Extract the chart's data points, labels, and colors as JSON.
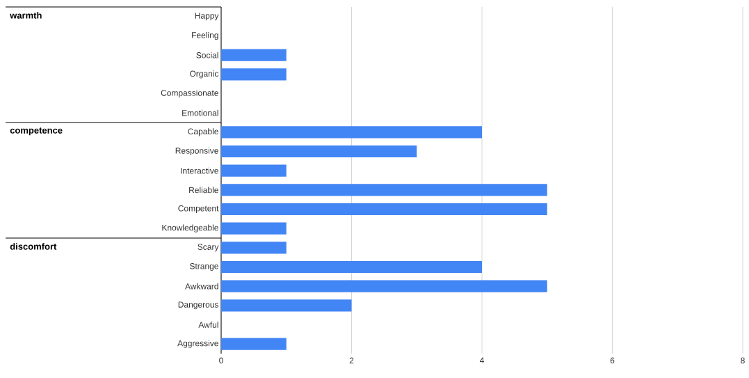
{
  "chart_data": {
    "type": "bar",
    "orientation": "horizontal",
    "categories": [
      "Happy",
      "Feeling",
      "Social",
      "Organic",
      "Compassionate",
      "Emotional",
      "Capable",
      "Responsive",
      "Interactive",
      "Reliable",
      "Competent",
      "Knowledgeable",
      "Scary",
      "Strange",
      "Awkward",
      "Dangerous",
      "Awful",
      "Aggressive"
    ],
    "values": [
      0,
      0,
      1,
      1,
      0,
      0,
      4,
      3,
      1,
      5,
      5,
      1,
      1,
      4,
      5,
      2,
      0,
      1
    ],
    "color": "#4285f4",
    "xlim": [
      0,
      8
    ],
    "xticks": [
      0,
      2,
      4,
      6,
      8
    ],
    "grid": "x",
    "annotations": [
      "warmth",
      "competence",
      "discomfort"
    ]
  }
}
